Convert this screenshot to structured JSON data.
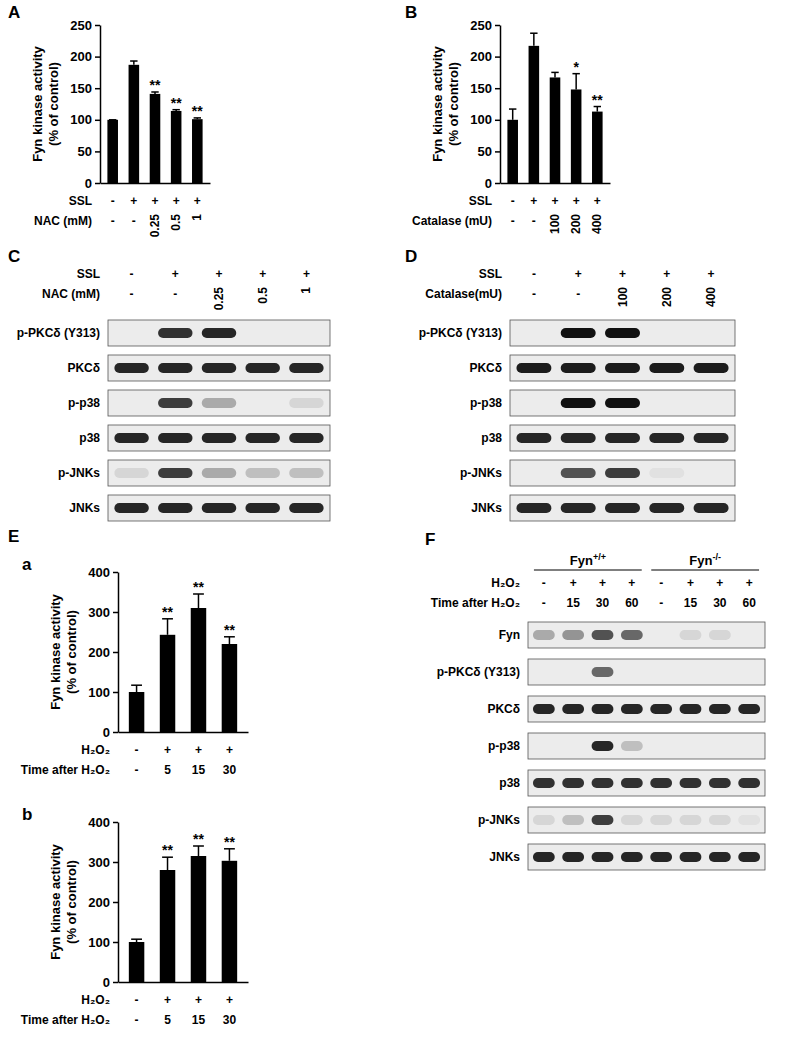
{
  "chart_data": [
    {
      "type": "bar",
      "title": "A",
      "ylabel": [
        "Fyn kinase activity",
        "(% of control)"
      ],
      "categories": [
        null,
        null,
        null,
        null,
        null
      ],
      "values": [
        100,
        187,
        141,
        114,
        101
      ],
      "errors": [
        0,
        6,
        3,
        2,
        2
      ],
      "significance": [
        null,
        null,
        "**",
        "**",
        "**"
      ],
      "condition_rows": [
        {
          "label": "SSL",
          "values": [
            "-",
            "+",
            "+",
            "+",
            "+"
          ]
        },
        {
          "label": "NAC (mM)",
          "values": [
            "-",
            "-",
            "0.25",
            "0.5",
            "1"
          ]
        }
      ],
      "color": "#000000",
      "ylim": [
        0,
        250
      ],
      "yticks": [
        0,
        50,
        100,
        150,
        200,
        250
      ],
      "tick_labels": "y"
    },
    {
      "type": "bar",
      "title": "B",
      "ylabel": [
        "Fyn kinase activity",
        "(% of control)"
      ],
      "categories": [
        null,
        null,
        null,
        null,
        null
      ],
      "values": [
        100,
        217,
        167,
        148,
        113
      ],
      "errors": [
        17,
        20,
        8,
        25,
        8
      ],
      "significance": [
        null,
        null,
        null,
        "*",
        "**"
      ],
      "condition_rows": [
        {
          "label": "SSL",
          "values": [
            "-",
            "+",
            "+",
            "+",
            "+"
          ]
        },
        {
          "label": "Catalase (mU)",
          "values": [
            "-",
            "-",
            "100",
            "200",
            "400"
          ]
        }
      ],
      "color": "#000000",
      "ylim": [
        0,
        250
      ],
      "yticks": [
        0,
        50,
        100,
        150,
        200,
        250
      ],
      "tick_labels": "y"
    },
    {
      "type": "bar",
      "title": "a",
      "annotations": [
        "E"
      ],
      "ylabel": [
        "Fyn kinase activity",
        "(% of control)"
      ],
      "categories": [
        null,
        null,
        null,
        null
      ],
      "values": [
        100,
        243,
        310,
        220
      ],
      "errors": [
        17,
        40,
        35,
        18
      ],
      "significance": [
        null,
        "**",
        "**",
        "**"
      ],
      "condition_rows": [
        {
          "label": "H₂O₂",
          "values": [
            "-",
            "+",
            "+",
            "+"
          ]
        },
        {
          "label": "Time after H₂O₂",
          "values": [
            "-",
            "5",
            "15",
            "30"
          ]
        }
      ],
      "color": "#000000",
      "ylim": [
        0,
        400
      ],
      "yticks": [
        0,
        100,
        200,
        300,
        400
      ],
      "tick_labels": "y"
    },
    {
      "type": "bar",
      "title": "b",
      "ylabel": [
        "Fyn kinase activity",
        "(% of control)"
      ],
      "categories": [
        null,
        null,
        null,
        null
      ],
      "values": [
        100,
        280,
        315,
        303
      ],
      "errors": [
        7,
        32,
        25,
        30
      ],
      "significance": [
        null,
        "**",
        "**",
        "**"
      ],
      "condition_rows": [
        {
          "label": "H₂O₂",
          "values": [
            "-",
            "+",
            "+",
            "+"
          ]
        },
        {
          "label": "Time after H₂O₂",
          "values": [
            "-",
            "5",
            "15",
            "30"
          ]
        }
      ],
      "color": "#000000",
      "ylim": [
        0,
        400
      ],
      "yticks": [
        0,
        100,
        200,
        300,
        400
      ],
      "tick_labels": "y"
    }
  ],
  "blots": [
    {
      "title": "C",
      "header_rows": [
        {
          "label": "SSL",
          "values": [
            "-",
            "+",
            "+",
            "+",
            "+"
          ]
        },
        {
          "label": "NAC (mM)",
          "values": [
            "-",
            "-",
            "0.25",
            "0.5",
            "1"
          ]
        }
      ],
      "rows": [
        {
          "label": "p-PKCδ (Y313)",
          "bands": [
            0,
            0.85,
            0.9,
            0,
            0
          ]
        },
        {
          "label": "PKCδ",
          "bands": [
            0.9,
            0.9,
            0.9,
            0.9,
            0.9
          ]
        },
        {
          "label": "p-p38",
          "bands": [
            0,
            0.8,
            0.3,
            0,
            0.1
          ]
        },
        {
          "label": "p38",
          "bands": [
            0.9,
            0.9,
            0.9,
            0.9,
            0.9
          ]
        },
        {
          "label": "p-JNKs",
          "bands": [
            0.1,
            0.8,
            0.3,
            0.2,
            0.2
          ]
        },
        {
          "label": "JNKs",
          "bands": [
            0.9,
            0.9,
            0.9,
            0.9,
            0.9
          ]
        }
      ]
    },
    {
      "title": "D",
      "header_rows": [
        {
          "label": "SSL",
          "values": [
            "-",
            "+",
            "+",
            "+",
            "+"
          ]
        },
        {
          "label": "Catalase(mU)",
          "values": [
            "-",
            "-",
            "100",
            "200",
            "400"
          ]
        }
      ],
      "rows": [
        {
          "label": "p-PKCδ (Y313)",
          "bands": [
            0,
            1,
            1,
            0,
            0
          ]
        },
        {
          "label": "PKCδ",
          "bands": [
            0.95,
            0.95,
            0.95,
            0.95,
            0.95
          ]
        },
        {
          "label": "p-p38",
          "bands": [
            0,
            1,
            1,
            0,
            0
          ]
        },
        {
          "label": "p38",
          "bands": [
            0.9,
            0.9,
            0.9,
            0.9,
            0.9
          ]
        },
        {
          "label": "p-JNKs",
          "bands": [
            0,
            0.7,
            0.8,
            0.05,
            0
          ]
        },
        {
          "label": "JNKs",
          "bands": [
            0.9,
            0.9,
            0.9,
            0.9,
            0.9
          ]
        }
      ]
    },
    {
      "title": "F",
      "groups": [
        {
          "base": "Fyn",
          "sup": "+/+",
          "span": 4
        },
        {
          "base": "Fyn",
          "sup": "-/-",
          "span": 4
        }
      ],
      "header_rows": [
        {
          "label": "H₂O₂",
          "values": [
            "-",
            "+",
            "+",
            "+",
            "-",
            "+",
            "+",
            "+"
          ]
        },
        {
          "label": "Time after H₂O₂",
          "values": [
            "-",
            "15",
            "30",
            "60",
            "-",
            "15",
            "30",
            "60"
          ]
        }
      ],
      "rows": [
        {
          "label": "Fyn",
          "bands": [
            0.3,
            0.4,
            0.7,
            0.6,
            0,
            0.1,
            0.1,
            0
          ]
        },
        {
          "label": "p-PKCδ (Y313)",
          "bands": [
            0,
            0,
            0.6,
            0,
            0,
            0,
            0,
            0
          ]
        },
        {
          "label": "PKCδ",
          "bands": [
            0.9,
            0.9,
            0.9,
            0.9,
            0.9,
            0.9,
            0.9,
            0.9
          ]
        },
        {
          "label": "p-p38",
          "bands": [
            0,
            0,
            0.9,
            0.2,
            0,
            0,
            0,
            0
          ]
        },
        {
          "label": "p38",
          "bands": [
            0.85,
            0.85,
            0.85,
            0.85,
            0.85,
            0.85,
            0.85,
            0.85
          ]
        },
        {
          "label": "p-JNKs",
          "bands": [
            0.1,
            0.2,
            0.8,
            0.1,
            0.1,
            0.1,
            0.1,
            0.05
          ]
        },
        {
          "label": "JNKs",
          "bands": [
            0.9,
            0.9,
            0.9,
            0.9,
            0.9,
            0.9,
            0.9,
            0.9
          ]
        }
      ]
    }
  ]
}
